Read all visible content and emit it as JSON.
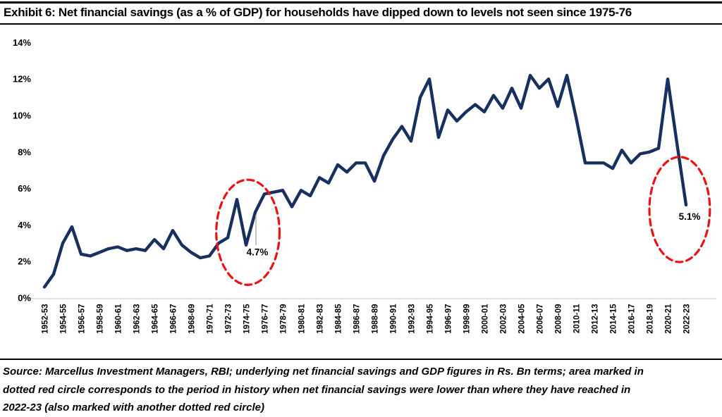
{
  "header": {
    "title": "Exhibit 6: Net financial savings (as a % of GDP) for households have dipped down to levels not seen since 1975-76"
  },
  "footer": {
    "source_lines": [
      "Source: Marcellus Investment Managers, RBI; underlying net financial savings and GDP figures in Rs. Bn terms; area marked in",
      "dotted red circle corresponds to the period in history when net financial savings were lower than where they have reached in",
      "2022-23 (also marked with another dotted red circle)"
    ]
  },
  "chart_data": {
    "type": "line",
    "title": "Net financial savings (as a % of GDP) for households",
    "value_format": "percent",
    "ylim": [
      0,
      14
    ],
    "y_tick_labels": [
      "0%",
      "2%",
      "4%",
      "6%",
      "8%",
      "10%",
      "12%",
      "14%"
    ],
    "x_tick_every": 2,
    "grid": false,
    "legend": false,
    "categories": [
      "1952-53",
      "1953-54",
      "1954-55",
      "1955-56",
      "1956-57",
      "1957-58",
      "1958-59",
      "1959-60",
      "1960-61",
      "1961-62",
      "1962-63",
      "1963-64",
      "1964-65",
      "1965-66",
      "1966-67",
      "1967-68",
      "1968-69",
      "1969-70",
      "1970-71",
      "1971-72",
      "1972-73",
      "1973-74",
      "1974-75",
      "1975-76",
      "1976-77",
      "1977-78",
      "1978-79",
      "1979-80",
      "1980-81",
      "1981-82",
      "1982-83",
      "1983-84",
      "1984-85",
      "1985-86",
      "1986-87",
      "1987-88",
      "1988-89",
      "1989-90",
      "1990-91",
      "1991-92",
      "1992-93",
      "1993-94",
      "1994-95",
      "1995-96",
      "1996-97",
      "1997-98",
      "1998-99",
      "1999-00",
      "2000-01",
      "2001-02",
      "2002-03",
      "2003-04",
      "2004-05",
      "2005-06",
      "2006-07",
      "2007-08",
      "2008-09",
      "2009-10",
      "2010-11",
      "2011-12",
      "2012-13",
      "2013-14",
      "2014-15",
      "2015-16",
      "2016-17",
      "2017-18",
      "2018-19",
      "2019-20",
      "2020-21",
      "2021-22",
      "2022-23"
    ],
    "values": [
      0.6,
      1.3,
      3.0,
      3.9,
      2.4,
      2.3,
      2.5,
      2.7,
      2.8,
      2.6,
      2.7,
      2.6,
      3.2,
      2.7,
      3.7,
      2.9,
      2.5,
      2.2,
      2.3,
      3.0,
      3.3,
      5.4,
      2.9,
      4.7,
      5.7,
      5.8,
      5.9,
      5.0,
      5.9,
      5.6,
      6.6,
      6.3,
      7.3,
      6.9,
      7.4,
      7.4,
      6.4,
      7.8,
      8.7,
      9.4,
      8.6,
      11.0,
      12.0,
      8.8,
      10.3,
      9.7,
      10.2,
      10.6,
      10.2,
      11.1,
      10.4,
      11.5,
      10.4,
      12.2,
      11.5,
      12.0,
      10.5,
      12.2,
      9.9,
      7.4,
      7.4,
      7.4,
      7.1,
      8.1,
      7.4,
      7.9,
      8.0,
      8.2,
      12.0,
      8.5,
      5.1
    ],
    "annotations": [
      {
        "text": "4.7%",
        "category": "1975-76",
        "value": 4.7,
        "leader": true
      },
      {
        "text": "5.1%",
        "category": "2022-23",
        "value": 5.1,
        "leader": false
      }
    ],
    "circles": [
      {
        "label": "1973-74 to 1976-77 trough",
        "center_index": 22.2,
        "center_value": 3.6,
        "radius_years": 3.45,
        "radius_value": 2.88
      },
      {
        "label": "2022-23 trough",
        "center_index": 69.3,
        "center_value": 4.85,
        "radius_years": 3.3,
        "radius_value": 2.88
      }
    ],
    "colors": {
      "line": "#17305f",
      "circle": "#ee1111",
      "axis": "#d9d9d9",
      "leader": "#b3b3b3",
      "text": "#000000",
      "background": "#ffffff"
    }
  }
}
